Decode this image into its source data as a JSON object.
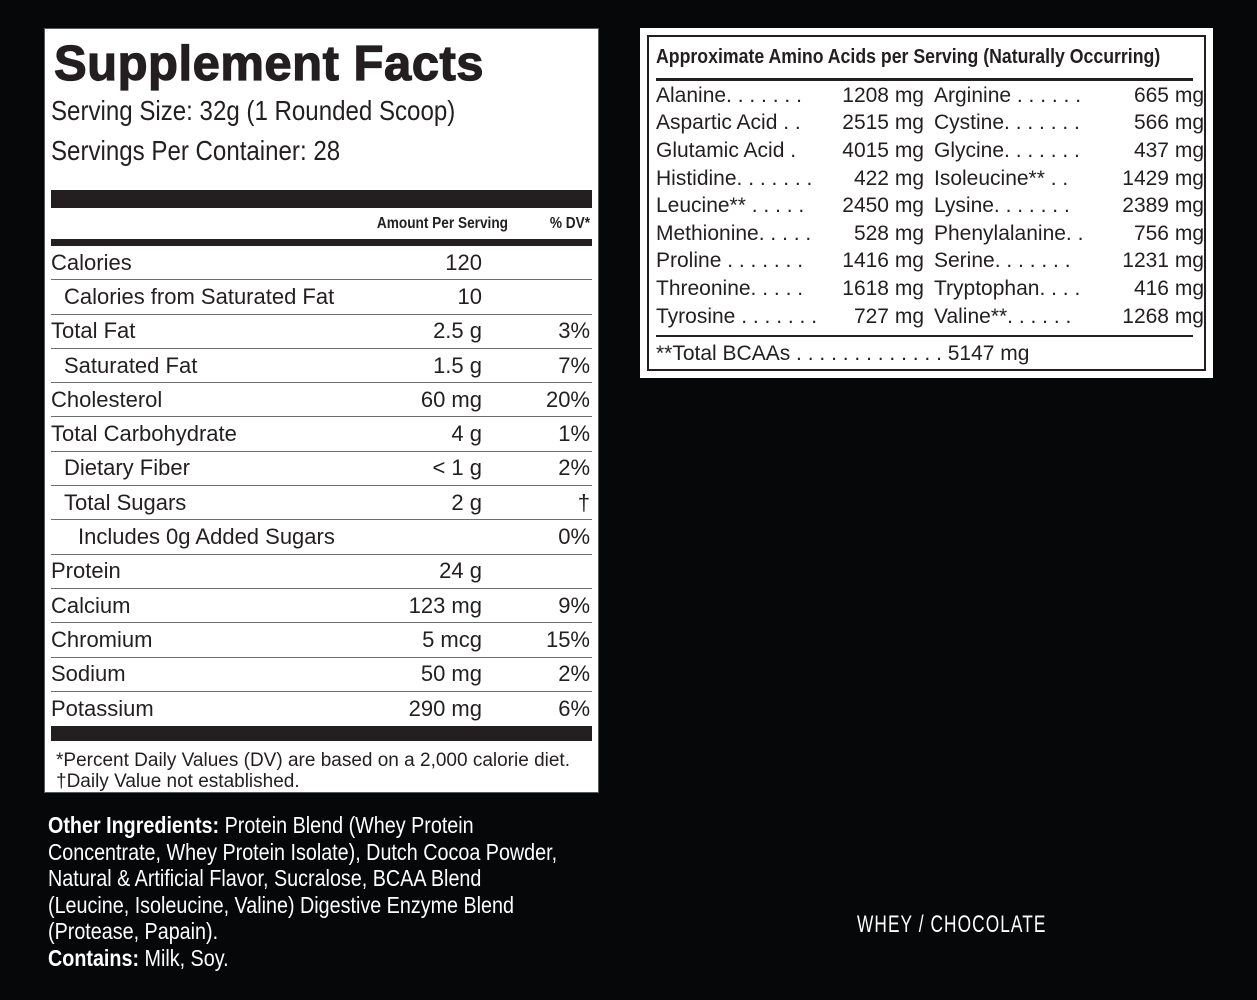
{
  "supplement_facts": {
    "title": "Supplement Facts",
    "serving_size": "Serving Size: 32g (1 Rounded Scoop)",
    "servings_per_container": "Servings Per Container:  28",
    "header": {
      "amount": "Amount Per Serving",
      "dv": "% DV*"
    },
    "rows": [
      {
        "name": "Calories",
        "amount": "120",
        "dv": "",
        "indent": 0
      },
      {
        "name": "Calories from Saturated Fat",
        "amount": "10",
        "dv": "",
        "indent": 1
      },
      {
        "name": "Total Fat",
        "amount": "2.5 g",
        "dv": "3%",
        "indent": 0
      },
      {
        "name": "Saturated Fat",
        "amount": "1.5 g",
        "dv": "7%",
        "indent": 1
      },
      {
        "name": "Cholesterol",
        "amount": "60 mg",
        "dv": "20%",
        "indent": 0
      },
      {
        "name": "Total Carbohydrate",
        "amount": "4 g",
        "dv": "1%",
        "indent": 0
      },
      {
        "name": "Dietary Fiber",
        "amount": "< 1 g",
        "dv": "2%",
        "indent": 1
      },
      {
        "name": "Total Sugars",
        "amount": "2 g",
        "dv": "†",
        "indent": 1
      },
      {
        "name": "Includes 0g Added Sugars",
        "amount": "",
        "dv": "0%",
        "indent": 2
      },
      {
        "name": "Protein",
        "amount": "24 g",
        "dv": "",
        "indent": 0
      },
      {
        "name": "Calcium",
        "amount": "123 mg",
        "dv": "9%",
        "indent": 0
      },
      {
        "name": "Chromium",
        "amount": "5 mcg",
        "dv": "15%",
        "indent": 0
      },
      {
        "name": "Sodium",
        "amount": "50 mg",
        "dv": "2%",
        "indent": 0
      },
      {
        "name": "Potassium",
        "amount": "290 mg",
        "dv": "6%",
        "indent": 0
      }
    ],
    "footnotes": [
      "*Percent Daily Values (DV) are based on a 2,000 calorie diet.",
      "†Daily Value not established."
    ]
  },
  "amino_acids": {
    "title": "Approximate Amino Acids per Serving (Naturally Occurring)",
    "items": [
      {
        "name": "Alanine. . . . . . .",
        "value": "1208 mg"
      },
      {
        "name": "Arginine . . . . . .",
        "value": "665 mg"
      },
      {
        "name": "Aspartic Acid . .",
        "value": "2515 mg"
      },
      {
        "name": "Cystine. . . . . . .",
        "value": "566 mg"
      },
      {
        "name": "Glutamic Acid  .",
        "value": "4015 mg"
      },
      {
        "name": "Glycine. . . . . . .",
        "value": "437 mg"
      },
      {
        "name": "Histidine. . . . . . .",
        "value": "422 mg"
      },
      {
        "name": "Isoleucine**  . .",
        "value": "1429 mg"
      },
      {
        "name": "Leucine** . . . . .",
        "value": "2450 mg"
      },
      {
        "name": "Lysine. . . . . . .",
        "value": "2389 mg"
      },
      {
        "name": "Methionine. . . . .",
        "value": "528 mg"
      },
      {
        "name": "Phenylalanine. .",
        "value": "756 mg"
      },
      {
        "name": "Proline . . . . . . .",
        "value": "1416 mg"
      },
      {
        "name": "Serine. . . . . . .",
        "value": "1231 mg"
      },
      {
        "name": "Threonine. . . . .",
        "value": "1618 mg"
      },
      {
        "name": "Tryptophan. . . .",
        "value": "416 mg"
      },
      {
        "name": "Tyrosine . . . . . . .",
        "value": "727 mg"
      },
      {
        "name": "Valine**. . . . . .",
        "value": "1268 mg"
      }
    ],
    "total": "**Total BCAAs . . . . . . . . . . . . . 5147 mg"
  },
  "ingredients": {
    "label": "Other Ingredients:",
    "lines": [
      " Protein Blend (Whey Protein",
      "Concentrate, Whey Protein Isolate), Dutch Cocoa Powder,",
      "Natural & Artificial Flavor, Sucralose, BCAA Blend",
      "(Leucine, Isoleucine, Valine) Digestive Enzyme Blend",
      "(Protease, Papain)."
    ],
    "contains_label": "Contains:",
    "contains_value": " Milk, Soy."
  },
  "flavor": "WHEY / CHOCOLATE"
}
